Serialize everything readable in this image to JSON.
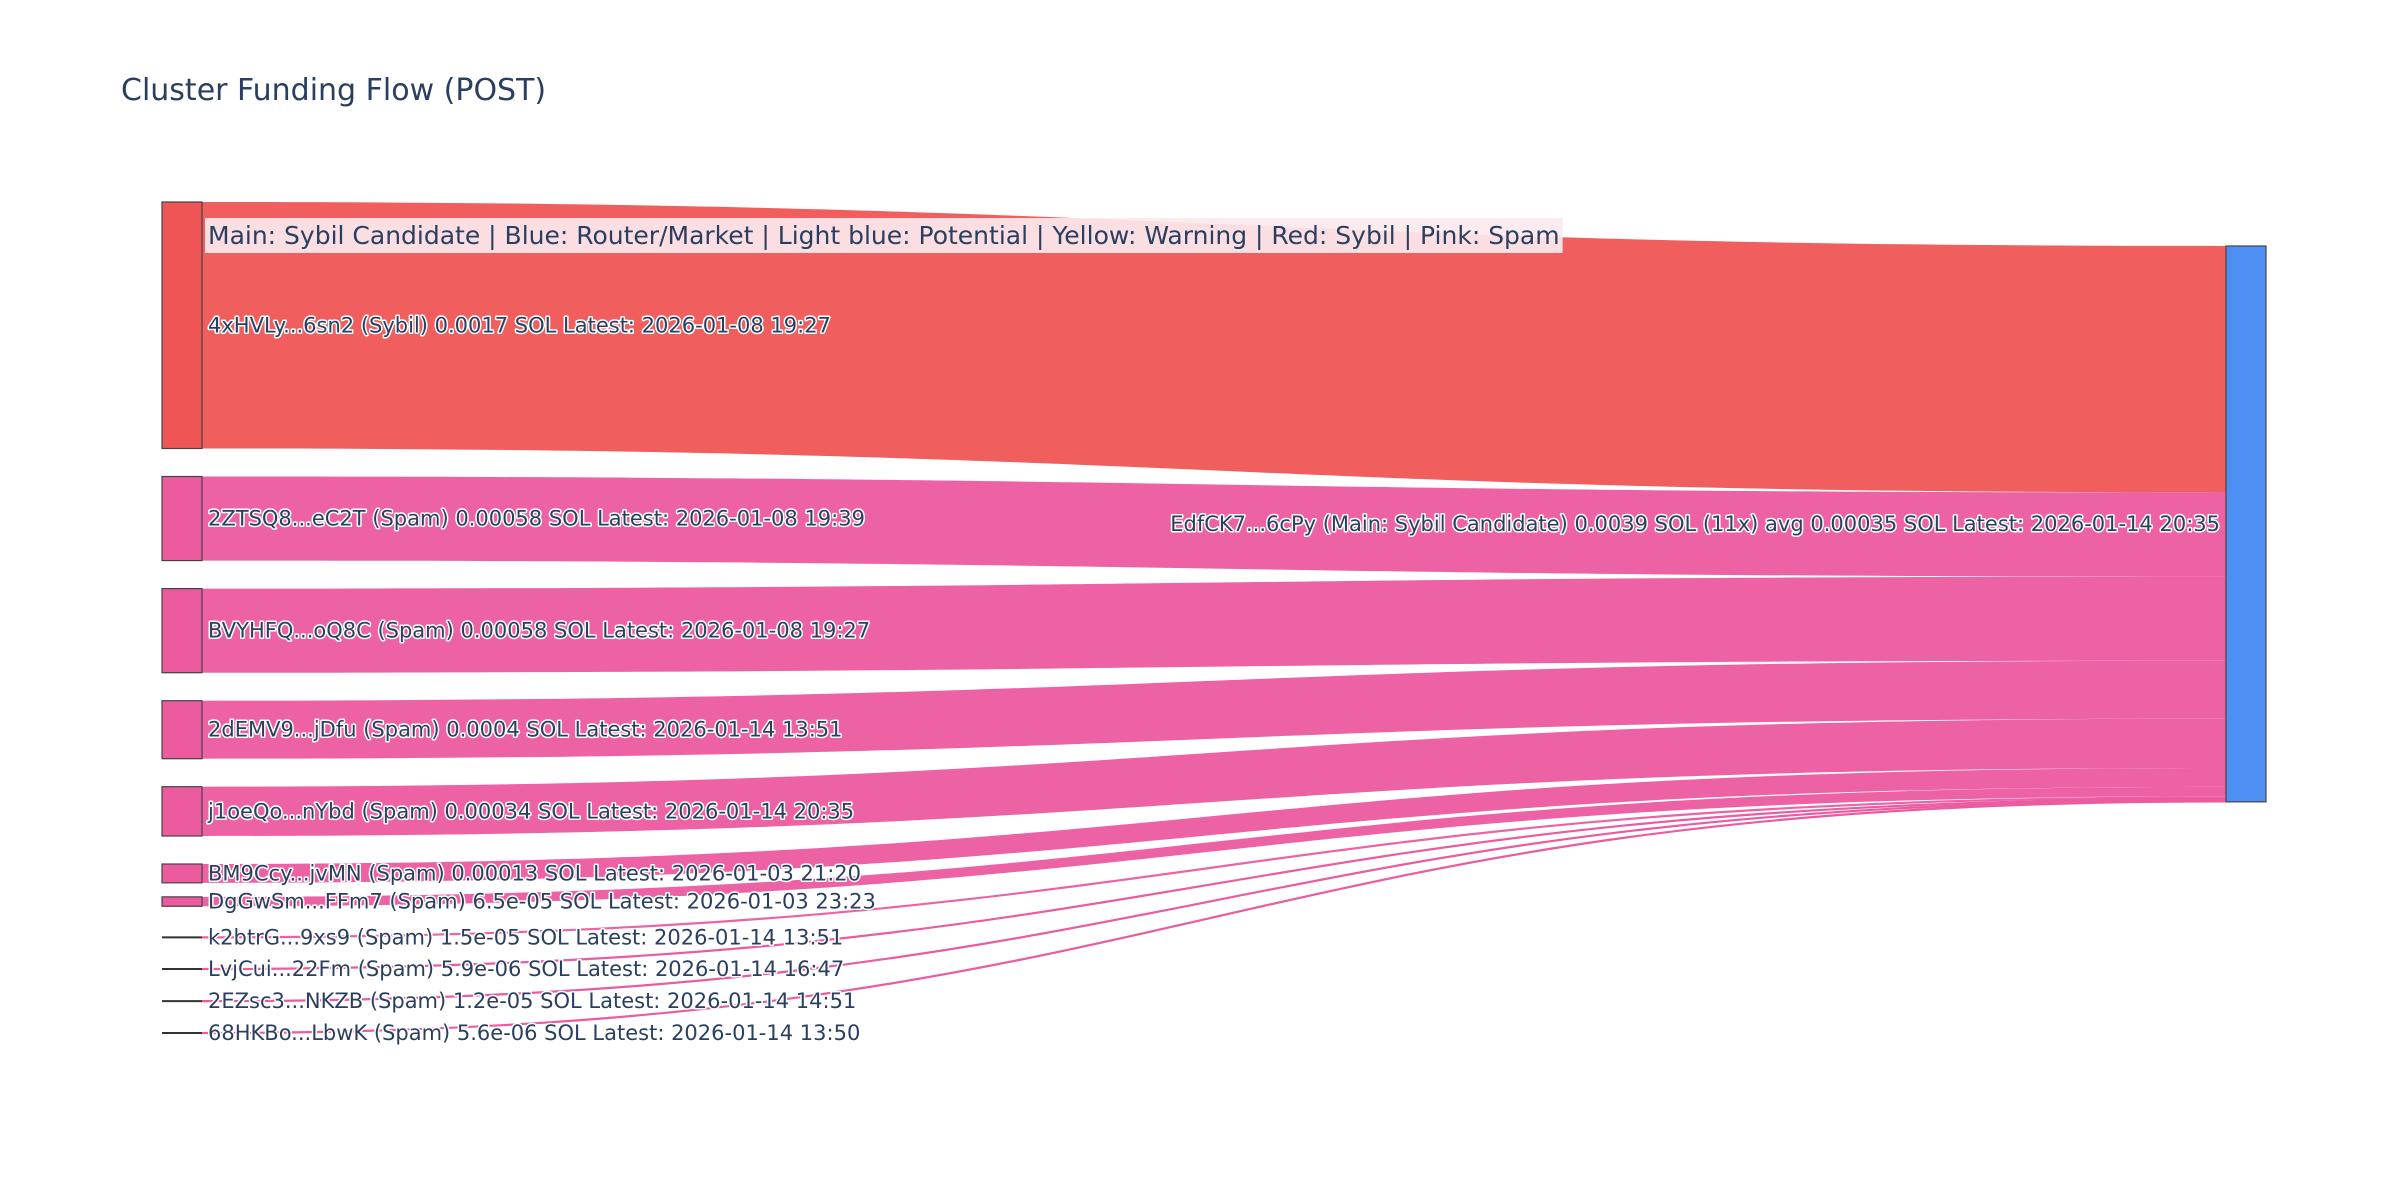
{
  "title": "Cluster Funding Flow (POST)",
  "legend_note": "Main: Sybil Candidate  |  Blue: Router/Market | Light blue: Potential | Yellow: Warning | Red: Sybil | Pink: Spam",
  "colors": {
    "sybil": "#ef5555",
    "spam": "#ec5aa0",
    "main": "#4e8ff3",
    "link_sybil": "#ef5555",
    "link_spam": "#ec5aa0",
    "text": "#2a3f5f"
  },
  "chart_data": {
    "type": "sankey",
    "title": "Cluster Funding Flow (POST)",
    "unit": "SOL",
    "nodes": [
      {
        "id": "4xHVLy...6sn2",
        "label": "4xHVLy...6sn2 (Sybil) 0.0017 SOL Latest: 2026-01-08 19:27",
        "role": "Sybil",
        "color": "sybil"
      },
      {
        "id": "2ZTSQ8...eC2T",
        "label": "2ZTSQ8...eC2T (Spam) 0.00058 SOL Latest: 2026-01-08 19:39",
        "role": "Spam",
        "color": "spam"
      },
      {
        "id": "BVYHFQ...oQ8C",
        "label": "BVYHFQ...oQ8C (Spam) 0.00058 SOL Latest: 2026-01-08 19:27",
        "role": "Spam",
        "color": "spam"
      },
      {
        "id": "2dEMV9...jDfu",
        "label": "2dEMV9...jDfu (Spam) 0.0004 SOL Latest: 2026-01-14 13:51",
        "role": "Spam",
        "color": "spam"
      },
      {
        "id": "j1oeQo...nYbd",
        "label": "j1oeQo...nYbd (Spam) 0.00034 SOL Latest: 2026-01-14 20:35",
        "role": "Spam",
        "color": "spam"
      },
      {
        "id": "BM9Ccy...jvMN",
        "label": "BM9Ccy...jvMN (Spam) 0.00013 SOL Latest: 2026-01-03 21:20",
        "role": "Spam",
        "color": "spam"
      },
      {
        "id": "DgGwSm...FFm7",
        "label": "DgGwSm...FFm7 (Spam) 6.5e-05 SOL Latest: 2026-01-03 23:23",
        "role": "Spam",
        "color": "spam"
      },
      {
        "id": "k2btrG...9xs9",
        "label": "k2btrG...9xs9 (Spam) 1.5e-05 SOL Latest: 2026-01-14 13:51",
        "role": "Spam",
        "color": "spam"
      },
      {
        "id": "LvjCui...22Fm",
        "label": "LvjCui...22Fm (Spam) 5.9e-06 SOL Latest: 2026-01-14 16:47",
        "role": "Spam",
        "color": "spam"
      },
      {
        "id": "2EZsc3...NKZB",
        "label": "2EZsc3...NKZB (Spam) 1.2e-05 SOL Latest: 2026-01-14 14:51",
        "role": "Spam",
        "color": "spam"
      },
      {
        "id": "68HKBo...LbwK",
        "label": "68HKBo...LbwK (Spam) 5.6e-06 SOL Latest: 2026-01-14 13:50",
        "role": "Spam",
        "color": "spam"
      },
      {
        "id": "EdfCK7...6cPy",
        "label": "EdfCK7...6cPy (Main: Sybil Candidate) 0.0039 SOL (11x) avg 0.00035 SOL Latest: 2026-01-14 20:35",
        "role": "Main: Sybil Candidate",
        "color": "main"
      }
    ],
    "links": [
      {
        "source": "4xHVLy...6sn2",
        "target": "EdfCK7...6cPy",
        "value": 0.0017
      },
      {
        "source": "2ZTSQ8...eC2T",
        "target": "EdfCK7...6cPy",
        "value": 0.00058
      },
      {
        "source": "BVYHFQ...oQ8C",
        "target": "EdfCK7...6cPy",
        "value": 0.00058
      },
      {
        "source": "2dEMV9...jDfu",
        "target": "EdfCK7...6cPy",
        "value": 0.0004
      },
      {
        "source": "j1oeQo...nYbd",
        "target": "EdfCK7...6cPy",
        "value": 0.00034
      },
      {
        "source": "BM9Ccy...jvMN",
        "target": "EdfCK7...6cPy",
        "value": 0.00013
      },
      {
        "source": "DgGwSm...FFm7",
        "target": "EdfCK7...6cPy",
        "value": 6.5e-05
      },
      {
        "source": "k2btrG...9xs9",
        "target": "EdfCK7...6cPy",
        "value": 1.5e-05
      },
      {
        "source": "LvjCui...22Fm",
        "target": "EdfCK7...6cPy",
        "value": 5.9e-06
      },
      {
        "source": "2EZsc3...NKZB",
        "target": "EdfCK7...6cPy",
        "value": 1.2e-05
      },
      {
        "source": "68HKBo...LbwK",
        "target": "EdfCK7...6cPy",
        "value": 5.6e-06
      }
    ]
  }
}
